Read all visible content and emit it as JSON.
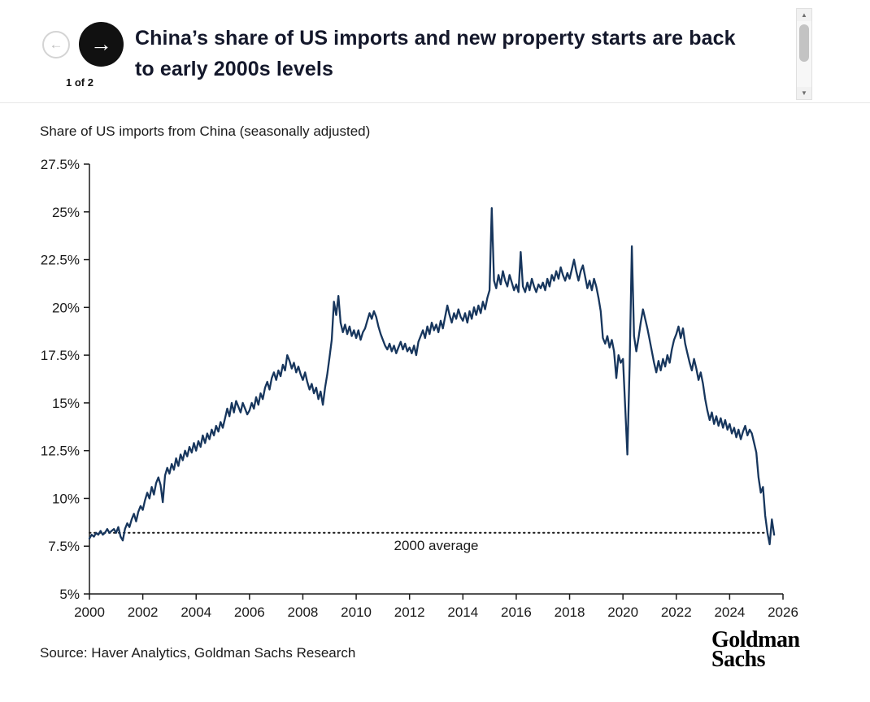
{
  "header": {
    "pagination": "1 of 2"
  },
  "icons": {
    "prev_arrow": "←",
    "next_arrow": "→",
    "scroll_up": "▲",
    "scroll_down": "▼"
  },
  "footer": {
    "source": "Source: Haver Analytics, Goldman Sachs Research",
    "logo_line1": "Goldman",
    "logo_line2": "Sachs"
  },
  "chart_data": {
    "type": "line",
    "title": "China’s share of US imports and new property starts are back to early 2000s levels",
    "subtitle": "Share of US imports from China (seasonally adjusted)",
    "grid": false,
    "legend": "none",
    "xlim": [
      2000,
      2026
    ],
    "ylim": [
      5,
      27.5
    ],
    "x_ticks": [
      2000,
      2002,
      2004,
      2006,
      2008,
      2010,
      2012,
      2014,
      2016,
      2018,
      2020,
      2022,
      2024,
      2026
    ],
    "y_ticks": [
      5,
      7.5,
      10,
      12.5,
      15,
      17.5,
      20,
      22.5,
      25,
      27.5
    ],
    "y_tick_labels": [
      "5%",
      "7.5%",
      "10%",
      "12.5%",
      "15%",
      "17.5%",
      "20%",
      "22.5%",
      "25%",
      "27.5%"
    ],
    "reference_line": {
      "value": 8.2,
      "label": "2000 average",
      "style": "dotted",
      "x_end": 2025.3,
      "color": "#1a1a1a"
    },
    "series": [
      {
        "name": "china-share-of-us-imports",
        "color": "#17365d",
        "x_start": 2000.0,
        "x_step": 0.0833333,
        "values": [
          7.9,
          8.1,
          8.0,
          8.2,
          8.1,
          8.3,
          8.1,
          8.2,
          8.4,
          8.2,
          8.3,
          8.4,
          8.2,
          8.5,
          8.0,
          7.8,
          8.4,
          8.7,
          8.5,
          8.9,
          9.2,
          8.8,
          9.3,
          9.6,
          9.4,
          9.9,
          10.3,
          10.0,
          10.6,
          10.2,
          10.8,
          11.1,
          10.7,
          9.8,
          11.2,
          11.6,
          11.3,
          11.8,
          11.5,
          12.1,
          11.7,
          12.3,
          12.0,
          12.5,
          12.2,
          12.7,
          12.4,
          12.9,
          12.5,
          13.0,
          12.7,
          13.3,
          12.9,
          13.4,
          13.1,
          13.6,
          13.3,
          13.8,
          13.5,
          14.0,
          13.7,
          14.2,
          14.7,
          14.3,
          15.0,
          14.5,
          15.1,
          14.8,
          14.5,
          15.0,
          14.7,
          14.4,
          14.6,
          15.0,
          14.7,
          15.3,
          14.9,
          15.5,
          15.2,
          15.8,
          16.1,
          15.7,
          16.3,
          16.6,
          16.2,
          16.7,
          16.4,
          17.0,
          16.7,
          17.5,
          17.2,
          16.8,
          17.1,
          16.6,
          16.9,
          16.5,
          16.2,
          16.6,
          16.1,
          15.7,
          16.0,
          15.5,
          15.8,
          15.2,
          15.6,
          14.9,
          15.8,
          16.5,
          17.4,
          18.3,
          20.3,
          19.6,
          20.6,
          19.2,
          18.7,
          19.1,
          18.6,
          19.0,
          18.5,
          18.8,
          18.4,
          18.8,
          18.3,
          18.7,
          18.9,
          19.3,
          19.7,
          19.4,
          19.8,
          19.5,
          19.0,
          18.6,
          18.3,
          18.0,
          17.8,
          18.1,
          17.7,
          18.0,
          17.6,
          17.9,
          18.2,
          17.8,
          18.1,
          17.7,
          17.9,
          17.6,
          18.0,
          17.5,
          18.2,
          18.5,
          18.8,
          18.4,
          19.0,
          18.6,
          19.2,
          18.8,
          19.1,
          18.7,
          19.3,
          18.9,
          19.5,
          20.1,
          19.6,
          19.2,
          19.7,
          19.4,
          19.9,
          19.5,
          19.3,
          19.7,
          19.2,
          19.8,
          19.4,
          20.0,
          19.6,
          20.1,
          19.7,
          20.3,
          19.9,
          20.5,
          20.9,
          25.2,
          21.4,
          21.0,
          21.7,
          21.2,
          21.9,
          21.4,
          21.1,
          21.7,
          21.3,
          20.9,
          21.2,
          20.8,
          22.9,
          21.1,
          20.8,
          21.3,
          20.9,
          21.5,
          21.1,
          20.8,
          21.2,
          21.0,
          21.3,
          20.9,
          21.5,
          21.1,
          21.7,
          21.4,
          21.9,
          21.5,
          22.1,
          21.7,
          21.4,
          21.8,
          21.5,
          22.0,
          22.5,
          21.9,
          21.4,
          21.9,
          22.2,
          21.6,
          21.0,
          21.4,
          20.9,
          21.5,
          21.1,
          20.5,
          19.8,
          18.4,
          18.1,
          18.5,
          17.9,
          18.3,
          17.7,
          16.3,
          17.5,
          17.1,
          17.3,
          14.8,
          12.3,
          17.0,
          23.2,
          18.5,
          17.7,
          18.4,
          19.2,
          19.9,
          19.4,
          18.9,
          18.3,
          17.7,
          17.1,
          16.6,
          17.2,
          16.7,
          17.3,
          16.9,
          17.5,
          17.1,
          17.8,
          18.3,
          18.6,
          19.0,
          18.4,
          18.9,
          18.1,
          17.6,
          17.1,
          16.7,
          17.3,
          16.8,
          16.2,
          16.6,
          16.0,
          15.2,
          14.6,
          14.1,
          14.5,
          13.9,
          14.3,
          13.8,
          14.2,
          13.7,
          14.1,
          13.6,
          13.9,
          13.4,
          13.7,
          13.2,
          13.6,
          13.1,
          13.5,
          13.8,
          13.3,
          13.6,
          13.4,
          12.9,
          12.4,
          11.1,
          10.3,
          10.6,
          9.1,
          8.2,
          7.6,
          8.9,
          8.1
        ]
      }
    ]
  }
}
